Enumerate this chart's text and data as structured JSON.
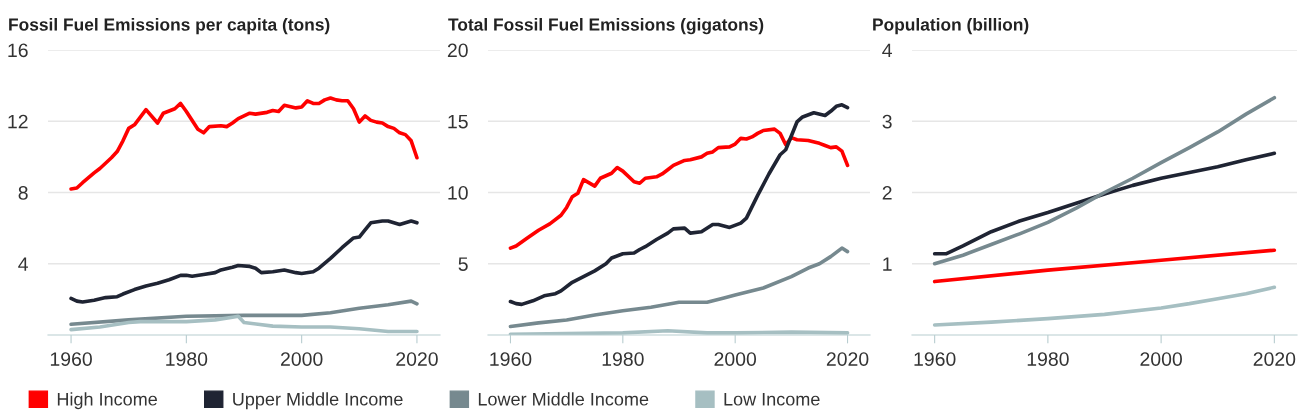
{
  "chart_data": [
    {
      "type": "line",
      "title": "Fossil Fuel Emissions per capita (tons)",
      "xlim": [
        1956,
        2024
      ],
      "xticks": [
        1960,
        1980,
        2000,
        2020
      ],
      "ylim": [
        0,
        16
      ],
      "yticks": [
        4,
        8,
        12,
        16
      ],
      "grid": "y",
      "legend": "bottom",
      "series": [
        {
          "name": "High Income",
          "color": "#ff0000",
          "x": [
            1960,
            1961,
            1962,
            1964,
            1965,
            1967,
            1968,
            1969,
            1970,
            1971,
            1973,
            1975,
            1976,
            1978,
            1979,
            1980,
            1982,
            1983,
            1984,
            1986,
            1987,
            1988,
            1989,
            1991,
            1992,
            1994,
            1995,
            1996,
            1997,
            1999,
            2000,
            2001,
            2002,
            2003,
            2004,
            2005,
            2006,
            2007,
            2008,
            2009,
            2010,
            2011,
            2012,
            2013,
            2014,
            2015,
            2016,
            2017,
            2018,
            2019,
            2020
          ],
          "values": [
            8.2,
            8.25,
            8.55,
            9.1,
            9.35,
            9.95,
            10.3,
            10.9,
            11.6,
            11.8,
            12.65,
            11.9,
            12.45,
            12.7,
            13.0,
            12.55,
            11.55,
            11.35,
            11.7,
            11.75,
            11.7,
            11.9,
            12.15,
            12.45,
            12.4,
            12.5,
            12.6,
            12.55,
            12.9,
            12.75,
            12.8,
            13.15,
            13.0,
            13.0,
            13.2,
            13.3,
            13.2,
            13.15,
            13.15,
            12.7,
            11.95,
            12.3,
            12.05,
            11.95,
            11.9,
            11.7,
            11.6,
            11.35,
            11.25,
            10.9,
            9.95
          ]
        },
        {
          "name": "Upper Middle Income",
          "color": "#1f2433",
          "x": [
            1960,
            1961,
            1962,
            1964,
            1966,
            1968,
            1969,
            1971,
            1973,
            1975,
            1977,
            1979,
            1980,
            1981,
            1983,
            1985,
            1986,
            1988,
            1989,
            1991,
            1992,
            1993,
            1995,
            1997,
            1999,
            2000,
            2002,
            2003,
            2005,
            2007,
            2009,
            2010,
            2011,
            2012,
            2014,
            2015,
            2017,
            2019,
            2020
          ],
          "values": [
            2.05,
            1.9,
            1.85,
            1.95,
            2.1,
            2.15,
            2.3,
            2.55,
            2.75,
            2.9,
            3.1,
            3.35,
            3.35,
            3.3,
            3.4,
            3.5,
            3.65,
            3.8,
            3.9,
            3.85,
            3.75,
            3.5,
            3.55,
            3.65,
            3.5,
            3.45,
            3.55,
            3.75,
            4.3,
            4.9,
            5.45,
            5.5,
            5.9,
            6.3,
            6.4,
            6.4,
            6.2,
            6.4,
            6.3
          ]
        },
        {
          "name": "Lower Middle Income",
          "color": "#76898f",
          "x": [
            1960,
            1970,
            1980,
            1990,
            2000,
            2005,
            2010,
            2015,
            2019,
            2020
          ],
          "values": [
            0.6,
            0.85,
            1.05,
            1.1,
            1.1,
            1.25,
            1.5,
            1.7,
            1.9,
            1.75
          ]
        },
        {
          "name": "Low Income",
          "color": "#a6bfc2",
          "x": [
            1960,
            1965,
            1970,
            1972,
            1975,
            1980,
            1985,
            1988,
            1989,
            1990,
            1995,
            2000,
            2005,
            2010,
            2015,
            2020
          ],
          "values": [
            0.3,
            0.45,
            0.7,
            0.75,
            0.75,
            0.75,
            0.85,
            1.0,
            1.05,
            0.7,
            0.5,
            0.45,
            0.45,
            0.35,
            0.2,
            0.2
          ]
        }
      ]
    },
    {
      "type": "line",
      "title": "Total Fossil Fuel Emissions (gigatons)",
      "xlim": [
        1956,
        2024
      ],
      "xticks": [
        1960,
        1980,
        2000,
        2020
      ],
      "ylim": [
        0,
        20
      ],
      "yticks": [
        5,
        10,
        15,
        20
      ],
      "grid": "y",
      "series": [
        {
          "color": "#ff0000",
          "x": [
            1960,
            1961,
            1963,
            1965,
            1967,
            1969,
            1970,
            1971,
            1972,
            1973,
            1975,
            1976,
            1978,
            1979,
            1980,
            1982,
            1983,
            1984,
            1986,
            1987,
            1988,
            1989,
            1991,
            1992,
            1994,
            1995,
            1996,
            1997,
            1999,
            2000,
            2001,
            2002,
            2003,
            2004,
            2005,
            2007,
            2008,
            2009,
            2010,
            2011,
            2013,
            2015,
            2016,
            2017,
            2018,
            2019,
            2020
          ],
          "values": [
            6.1,
            6.25,
            6.8,
            7.35,
            7.8,
            8.4,
            8.95,
            9.7,
            9.95,
            10.9,
            10.45,
            11.0,
            11.35,
            11.75,
            11.5,
            10.75,
            10.65,
            11.0,
            11.1,
            11.3,
            11.6,
            11.9,
            12.25,
            12.3,
            12.5,
            12.75,
            12.85,
            13.15,
            13.2,
            13.4,
            13.8,
            13.75,
            13.9,
            14.15,
            14.35,
            14.45,
            14.15,
            13.35,
            13.85,
            13.7,
            13.65,
            13.45,
            13.3,
            13.15,
            13.2,
            12.9,
            11.9
          ]
        },
        {
          "color": "#1f2433",
          "x": [
            1960,
            1961,
            1962,
            1964,
            1966,
            1968,
            1969,
            1971,
            1973,
            1975,
            1977,
            1978,
            1980,
            1982,
            1983,
            1984,
            1986,
            1988,
            1989,
            1991,
            1992,
            1994,
            1996,
            1997,
            1999,
            2001,
            2002,
            2004,
            2006,
            2008,
            2009,
            2011,
            2012,
            2014,
            2016,
            2017,
            2018,
            2019,
            2020
          ],
          "values": [
            2.35,
            2.2,
            2.15,
            2.4,
            2.75,
            2.9,
            3.1,
            3.7,
            4.1,
            4.5,
            5.0,
            5.4,
            5.7,
            5.75,
            6.0,
            6.2,
            6.7,
            7.15,
            7.45,
            7.5,
            7.15,
            7.25,
            7.75,
            7.75,
            7.55,
            7.85,
            8.2,
            9.8,
            11.3,
            12.65,
            13.0,
            14.95,
            15.3,
            15.6,
            15.4,
            15.7,
            16.05,
            16.15,
            15.95
          ]
        },
        {
          "color": "#76898f",
          "x": [
            1960,
            1965,
            1970,
            1975,
            1980,
            1985,
            1990,
            1995,
            1998,
            2000,
            2005,
            2010,
            2013,
            2015,
            2017,
            2019,
            2020
          ],
          "values": [
            0.6,
            0.85,
            1.05,
            1.4,
            1.7,
            1.95,
            2.3,
            2.3,
            2.6,
            2.8,
            3.3,
            4.1,
            4.7,
            5.0,
            5.5,
            6.1,
            5.85
          ]
        },
        {
          "color": "#a6bfc2",
          "x": [
            1960,
            1970,
            1980,
            1988,
            1995,
            2000,
            2010,
            2020
          ],
          "values": [
            0.05,
            0.1,
            0.15,
            0.3,
            0.15,
            0.15,
            0.2,
            0.15
          ]
        }
      ]
    },
    {
      "type": "line",
      "title": "Population (billion)",
      "xlim": [
        1956,
        2024
      ],
      "xticks": [
        1960,
        1980,
        2000,
        2020
      ],
      "ylim": [
        0,
        4
      ],
      "yticks": [
        1,
        2,
        3,
        4
      ],
      "grid": "y",
      "series": [
        {
          "color": "#ff0000",
          "x": [
            1960,
            1980,
            2000,
            2020
          ],
          "values": [
            0.75,
            0.91,
            1.05,
            1.19
          ]
        },
        {
          "color": "#1f2433",
          "x": [
            1960,
            1962,
            1965,
            1970,
            1975,
            1980,
            1985,
            1990,
            1995,
            2000,
            2005,
            2010,
            2015,
            2020
          ],
          "values": [
            1.14,
            1.14,
            1.25,
            1.45,
            1.6,
            1.72,
            1.85,
            1.98,
            2.1,
            2.2,
            2.28,
            2.36,
            2.46,
            2.55
          ]
        },
        {
          "color": "#76898f",
          "x": [
            1960,
            1965,
            1970,
            1975,
            1980,
            1985,
            1990,
            1995,
            2000,
            2005,
            2010,
            2015,
            2020
          ],
          "values": [
            1.0,
            1.12,
            1.27,
            1.42,
            1.58,
            1.78,
            2.0,
            2.2,
            2.42,
            2.63,
            2.85,
            3.1,
            3.33
          ]
        },
        {
          "color": "#a6bfc2",
          "x": [
            1960,
            1970,
            1980,
            1990,
            2000,
            2005,
            2010,
            2015,
            2020
          ],
          "values": [
            0.14,
            0.18,
            0.23,
            0.29,
            0.38,
            0.44,
            0.51,
            0.58,
            0.67
          ]
        }
      ]
    }
  ]
}
